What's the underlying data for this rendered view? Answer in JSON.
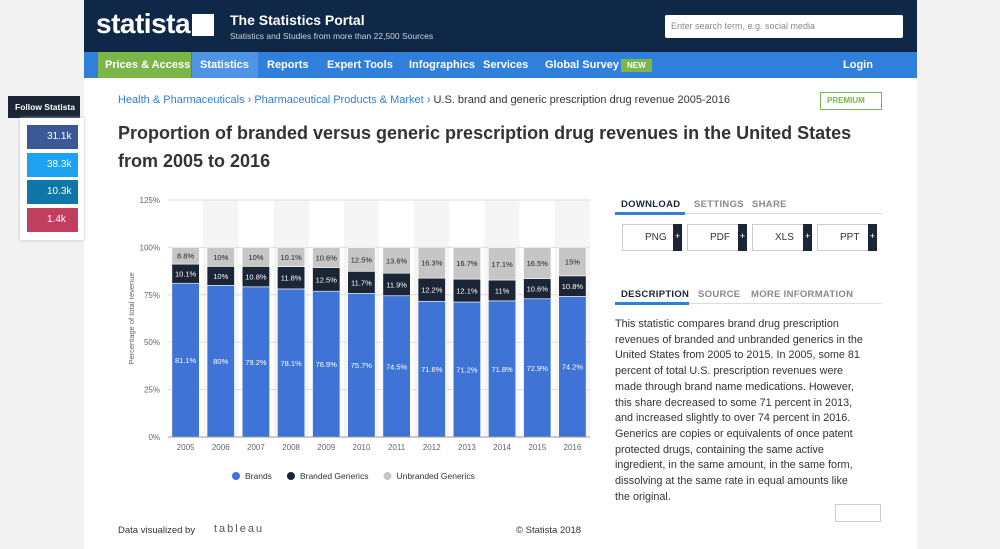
{
  "header": {
    "logo": "statista",
    "title": "The Statistics Portal",
    "subtitle": "Statistics and Studies from more than 22,500 Sources",
    "search_placeholder": "Enter search term, e.g. social media"
  },
  "nav": {
    "items": [
      "Prices & Access",
      "Statistics",
      "Reports",
      "Expert Tools",
      "Infographics",
      "Services",
      "Global Survey"
    ],
    "badge": "NEW",
    "login": "Login"
  },
  "social": {
    "title": "Follow Statista",
    "counts": [
      "31.1k",
      "38.3k",
      "10.3k",
      "1.4k"
    ]
  },
  "breadcrumb": [
    "Health & Pharmaceuticals",
    "Pharmaceutical Products & Market",
    "U.S. brand and generic prescription drug revenue 2005-2016"
  ],
  "premium": "PREMIUM",
  "title": "Proportion of branded versus generic prescription drug revenues in the United States from 2005 to 2016",
  "chart_data": {
    "type": "stacked_bar",
    "categories": [
      "2005",
      "2006",
      "2007",
      "2008",
      "2009",
      "2010",
      "2011",
      "2012",
      "2013",
      "2014",
      "2015",
      "2016"
    ],
    "series": [
      {
        "name": "Brands",
        "color": "#3f74d6",
        "values": [
          81.1,
          80,
          79.2,
          78.1,
          76.9,
          75.7,
          74.5,
          71.6,
          71.2,
          71.8,
          72.9,
          74.2
        ],
        "value_labels": [
          "81.1%",
          "80%",
          "79.2%",
          "78.1%",
          "76.9%",
          "75.7%",
          "74.5%",
          "71.6%",
          "71.2%",
          "71.8%",
          "72.9%",
          "74.2%"
        ]
      },
      {
        "name": "Branded Generics",
        "color": "#1b2536",
        "values": [
          10.1,
          10,
          10.8,
          11.8,
          12.5,
          11.7,
          11.9,
          12.2,
          12.1,
          11,
          10.6,
          10.8
        ],
        "value_labels": [
          "10.1%",
          "10%",
          "10.8%",
          "11.8%",
          "12.5%",
          "11.7%",
          "11.9%",
          "12.2%",
          "12.1%",
          "11%",
          "10.6%",
          "10.8%"
        ]
      },
      {
        "name": "Unbranded Generics",
        "color": "#c6c6c6",
        "values": [
          8.8,
          10,
          10,
          10.1,
          10.6,
          12.5,
          13.6,
          16.3,
          16.7,
          17.1,
          16.5,
          15
        ],
        "value_labels": [
          "8.8%",
          "10%",
          "10%",
          "10.1%",
          "10.6%",
          "12.5%",
          "13.6%",
          "16.3%",
          "16.7%",
          "17.1%",
          "16.5%",
          "15%"
        ]
      }
    ],
    "ylabel": "Percentage of total revenue",
    "ylim": [
      0,
      125
    ],
    "yticks": [
      {
        "value": 0,
        "label": "0%"
      },
      {
        "value": 25,
        "label": "25%"
      },
      {
        "value": 50,
        "label": "50%"
      },
      {
        "value": 75,
        "label": "75%"
      },
      {
        "value": 100,
        "label": "100%"
      },
      {
        "value": 125,
        "label": "125%"
      }
    ],
    "grid": true,
    "legend": "bottom"
  },
  "tabs": {
    "download": [
      "DOWNLOAD",
      "SETTINGS",
      "SHARE"
    ],
    "formats": [
      "PNG",
      "PDF",
      "XLS",
      "PPT"
    ],
    "info": [
      "DESCRIPTION",
      "SOURCE",
      "MORE INFORMATION"
    ]
  },
  "description": "This statistic compares brand drug prescription revenues of branded and unbranded generics in the United States from 2005 to 2015. In 2005, some 81 percent of total U.S. prescription revenues were made through brand name medications. However, this share decreased to some 71 percent in 2013, and increased slightly to over 74 percent in 2016. Generics are copies or equivalents of once patent protected drugs, containing the same active ingredient, in the same amount, in the same form, dissolving at the same rate in equal amounts like the original.",
  "footer": {
    "visualized": "Data visualized by",
    "tool": "tableau",
    "copyright": "© Statista 2018"
  }
}
